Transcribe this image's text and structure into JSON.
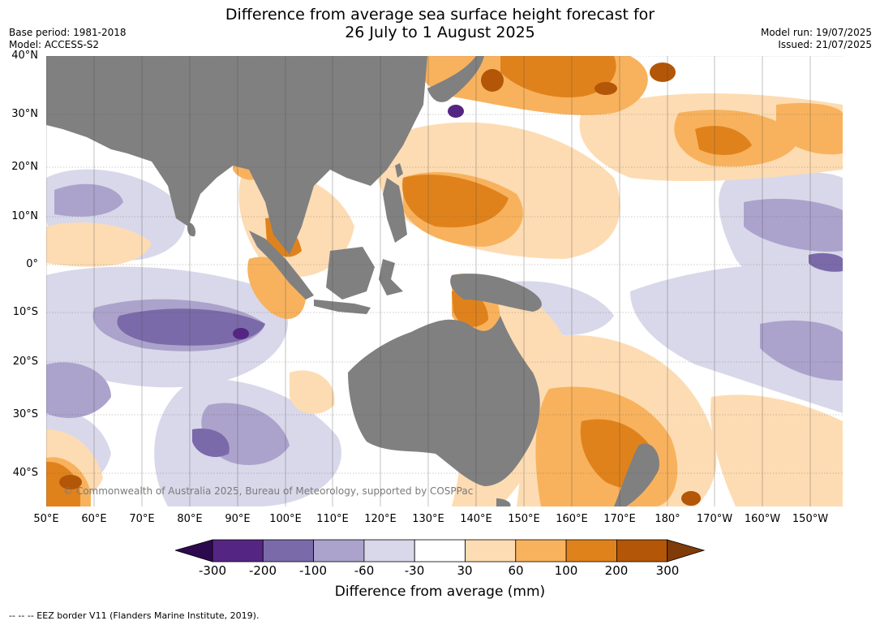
{
  "title": {
    "line1": "Difference from average sea surface height forecast for",
    "line2": "26 July to 1 August 2025"
  },
  "meta": {
    "base_period": "Base period: 1981-2018",
    "model": "Model: ACCESS-S2",
    "model_run": "Model run: 19/07/2025",
    "issued": "Issued: 21/07/2025"
  },
  "map": {
    "lat_labels": [
      "40°N",
      "30°N",
      "20°N",
      "10°N",
      "0°",
      "10°S",
      "20°S",
      "30°S",
      "40°S"
    ],
    "lon_labels": [
      "50°E",
      "60°E",
      "70°E",
      "80°E",
      "90°E",
      "100°E",
      "110°E",
      "120°E",
      "130°E",
      "140°E",
      "150°E",
      "160°E",
      "170°E",
      "180°",
      "170°W",
      "160°W",
      "150°W"
    ],
    "copyright": "© Commonwealth of Australia 2025, Bureau of Meteorology, supported by COSPPac",
    "land_color": "#808080"
  },
  "colorbar": {
    "ticks": [
      "-300",
      "-200",
      "-100",
      "-60",
      "-30",
      "30",
      "60",
      "100",
      "200",
      "300"
    ],
    "colors": [
      "#2d0a4e",
      "#552583",
      "#7b6aa9",
      "#aca3cc",
      "#d8d8ea",
      "#ffffff",
      "#fddcb3",
      "#f8b25d",
      "#e0821c",
      "#b35608",
      "#7f3b08"
    ],
    "label": "Difference from average (mm)"
  },
  "footer": "--  --  -- EEZ border V11 (Flanders Marine Institute, 2019)."
}
